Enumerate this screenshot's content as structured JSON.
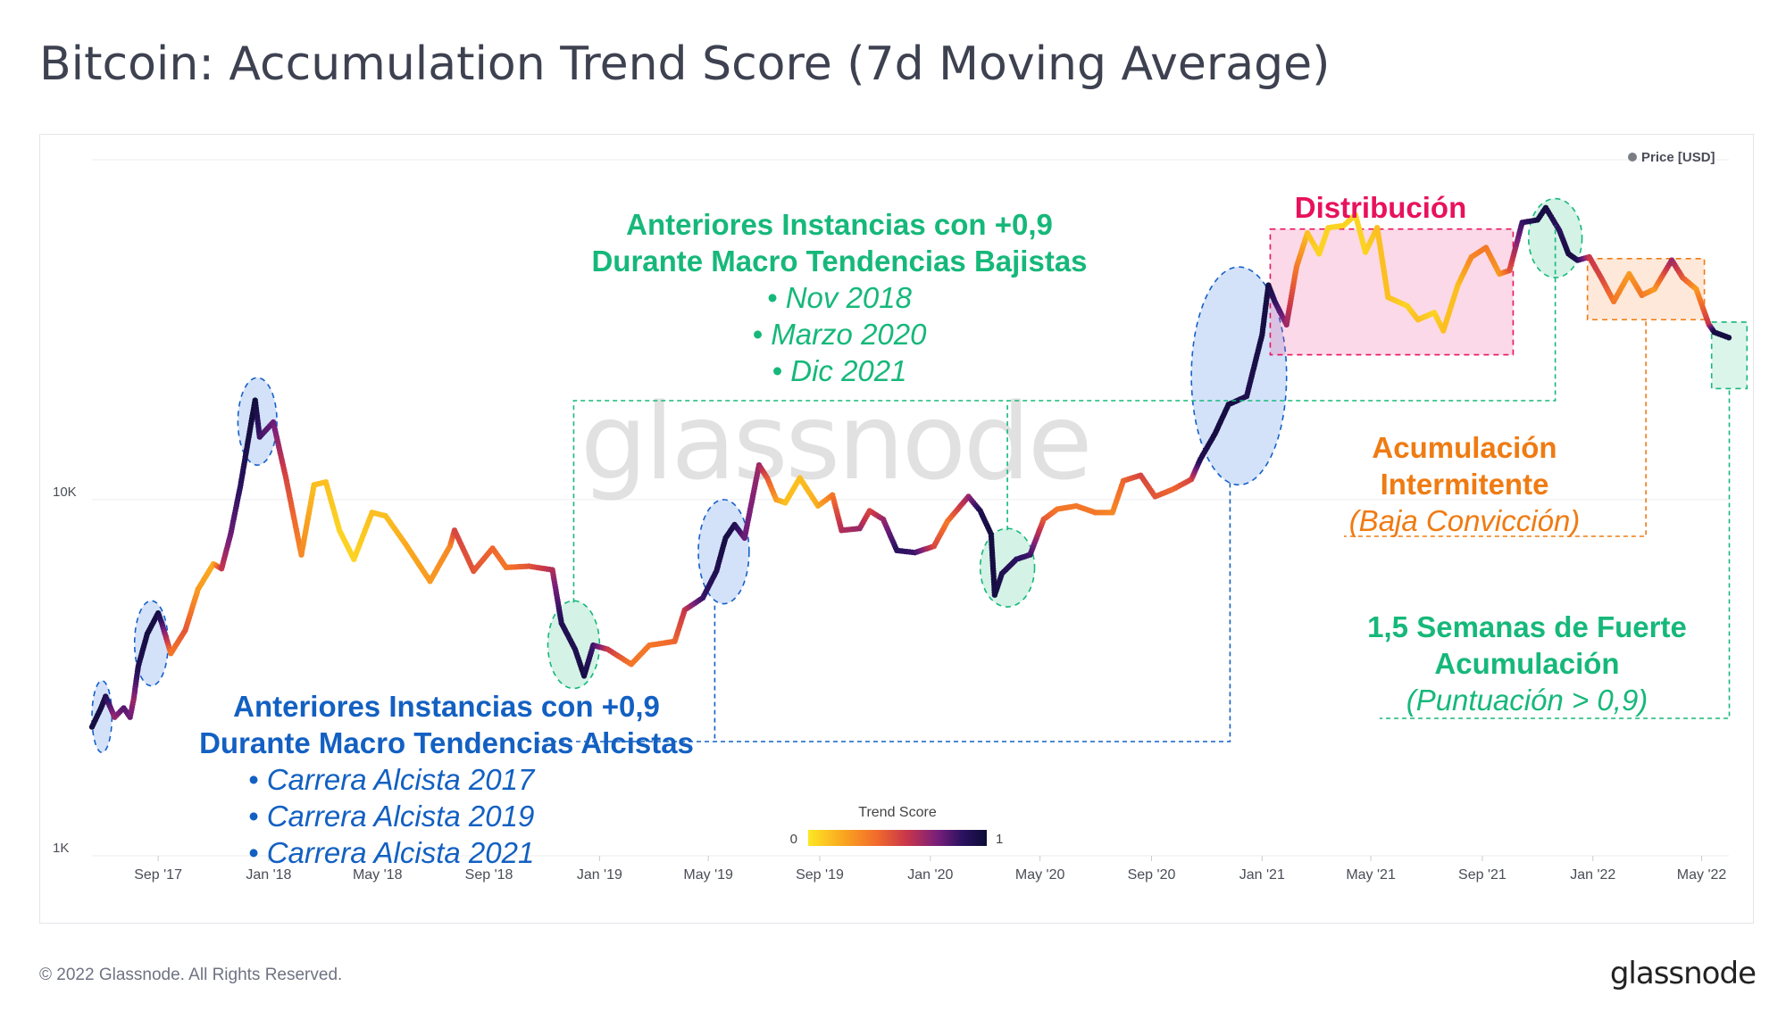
{
  "title": "Bitcoin: Accumulation Trend Score (7d Moving Average)",
  "footer": {
    "copyright": "© 2022 Glassnode. All Rights Reserved.",
    "logo": "glassnode"
  },
  "watermark": "glassnode",
  "colors": {
    "green": "#16b87a",
    "blue": "#1360c2",
    "pink": "#e8125c",
    "orange": "#ef7b12",
    "grid": "#eceef2",
    "text_axis": "#4a4d57"
  },
  "chart_data": {
    "type": "line",
    "title": "Bitcoin: Accumulation Trend Score (7d Moving Average)",
    "series_name": "Price [USD]",
    "color_by": "Trend Score",
    "y_scale": "log",
    "ylim": [
      1000,
      90000
    ],
    "x_start": "2017-06-20",
    "x_end": "2022-05-31",
    "y_ticks": [
      {
        "label": "1K",
        "value": 1000
      },
      {
        "label": "10K",
        "value": 10000
      }
    ],
    "x_ticks": [
      {
        "label": "Sep '17",
        "date": "2017-09-01"
      },
      {
        "label": "Jan '18",
        "date": "2018-01-01"
      },
      {
        "label": "May '18",
        "date": "2018-05-01"
      },
      {
        "label": "Sep '18",
        "date": "2018-09-01"
      },
      {
        "label": "Jan '19",
        "date": "2019-01-01"
      },
      {
        "label": "May '19",
        "date": "2019-05-01"
      },
      {
        "label": "Sep '19",
        "date": "2019-09-01"
      },
      {
        "label": "Jan '20",
        "date": "2020-01-01"
      },
      {
        "label": "May '20",
        "date": "2020-05-01"
      },
      {
        "label": "Sep '20",
        "date": "2020-09-01"
      },
      {
        "label": "Jan '21",
        "date": "2021-01-01"
      },
      {
        "label": "May '21",
        "date": "2021-05-01"
      },
      {
        "label": "Sep '21",
        "date": "2021-09-01"
      },
      {
        "label": "Jan '22",
        "date": "2022-01-01"
      },
      {
        "label": "May '22",
        "date": "2022-05-01"
      }
    ],
    "legend": {
      "label": "Price [USD]",
      "position": "top-right"
    },
    "colorbar": {
      "title": "Trend Score",
      "min_label": "0",
      "max_label": "1",
      "min": 0,
      "max": 1,
      "stops": [
        "#fde725",
        "#f9a51f",
        "#f26c2b",
        "#c9364a",
        "#7a1f7a",
        "#2d1262",
        "#0c0c35"
      ]
    },
    "points": [
      {
        "date": "2017-06-20",
        "price": 2300,
        "score": 0.95
      },
      {
        "date": "2017-06-30",
        "price": 2600,
        "score": 0.95
      },
      {
        "date": "2017-07-05",
        "price": 2800,
        "score": 0.9
      },
      {
        "date": "2017-07-15",
        "price": 2450,
        "score": 0.6
      },
      {
        "date": "2017-07-25",
        "price": 2600,
        "score": 0.75
      },
      {
        "date": "2017-08-01",
        "price": 2450,
        "score": 0.7
      },
      {
        "date": "2017-08-05",
        "price": 2750,
        "score": 0.6
      },
      {
        "date": "2017-08-10",
        "price": 3400,
        "score": 0.9
      },
      {
        "date": "2017-08-20",
        "price": 4200,
        "score": 0.95
      },
      {
        "date": "2017-09-01",
        "price": 4800,
        "score": 0.95
      },
      {
        "date": "2017-09-05",
        "price": 4500,
        "score": 0.8
      },
      {
        "date": "2017-09-15",
        "price": 3700,
        "score": 0.3
      },
      {
        "date": "2017-10-01",
        "price": 4300,
        "score": 0.4
      },
      {
        "date": "2017-10-15",
        "price": 5600,
        "score": 0.2
      },
      {
        "date": "2017-11-01",
        "price": 6600,
        "score": 0.15
      },
      {
        "date": "2017-11-10",
        "price": 6400,
        "score": 0.5
      },
      {
        "date": "2017-11-20",
        "price": 8000,
        "score": 0.7
      },
      {
        "date": "2017-12-01",
        "price": 11000,
        "score": 0.85
      },
      {
        "date": "2017-12-10",
        "price": 15000,
        "score": 0.95
      },
      {
        "date": "2017-12-17",
        "price": 19000,
        "score": 0.98
      },
      {
        "date": "2017-12-22",
        "price": 15000,
        "score": 0.8
      },
      {
        "date": "2018-01-06",
        "price": 16500,
        "score": 0.7
      },
      {
        "date": "2018-01-20",
        "price": 11500,
        "score": 0.45
      },
      {
        "date": "2018-02-06",
        "price": 7000,
        "score": 0.25
      },
      {
        "date": "2018-02-20",
        "price": 11000,
        "score": 0.1
      },
      {
        "date": "2018-03-05",
        "price": 11200,
        "score": 0.1
      },
      {
        "date": "2018-03-20",
        "price": 8200,
        "score": 0.05
      },
      {
        "date": "2018-04-05",
        "price": 6800,
        "score": 0.05
      },
      {
        "date": "2018-04-25",
        "price": 9200,
        "score": 0.1
      },
      {
        "date": "2018-05-10",
        "price": 9000,
        "score": 0.1
      },
      {
        "date": "2018-06-01",
        "price": 7500,
        "score": 0.15
      },
      {
        "date": "2018-06-28",
        "price": 5900,
        "score": 0.2
      },
      {
        "date": "2018-07-20",
        "price": 7400,
        "score": 0.25
      },
      {
        "date": "2018-07-25",
        "price": 8200,
        "score": 0.45
      },
      {
        "date": "2018-08-15",
        "price": 6300,
        "score": 0.4
      },
      {
        "date": "2018-09-05",
        "price": 7300,
        "score": 0.35
      },
      {
        "date": "2018-09-20",
        "price": 6450,
        "score": 0.3
      },
      {
        "date": "2018-10-15",
        "price": 6500,
        "score": 0.4
      },
      {
        "date": "2018-11-10",
        "price": 6350,
        "score": 0.55
      },
      {
        "date": "2018-11-20",
        "price": 4500,
        "score": 0.9
      },
      {
        "date": "2018-12-05",
        "price": 3800,
        "score": 0.9
      },
      {
        "date": "2018-12-15",
        "price": 3200,
        "score": 0.95
      },
      {
        "date": "2018-12-25",
        "price": 3900,
        "score": 0.8
      },
      {
        "date": "2019-01-10",
        "price": 3800,
        "score": 0.5
      },
      {
        "date": "2019-02-05",
        "price": 3450,
        "score": 0.3
      },
      {
        "date": "2019-02-25",
        "price": 3900,
        "score": 0.3
      },
      {
        "date": "2019-03-25",
        "price": 4000,
        "score": 0.35
      },
      {
        "date": "2019-04-05",
        "price": 4900,
        "score": 0.5
      },
      {
        "date": "2019-04-25",
        "price": 5300,
        "score": 0.8
      },
      {
        "date": "2019-05-10",
        "price": 6300,
        "score": 0.9
      },
      {
        "date": "2019-05-20",
        "price": 7800,
        "score": 0.95
      },
      {
        "date": "2019-05-30",
        "price": 8500,
        "score": 0.9
      },
      {
        "date": "2019-06-10",
        "price": 7800,
        "score": 0.7
      },
      {
        "date": "2019-06-26",
        "price": 12500,
        "score": 0.6
      },
      {
        "date": "2019-07-05",
        "price": 11500,
        "score": 0.4
      },
      {
        "date": "2019-07-15",
        "price": 10000,
        "score": 0.2
      },
      {
        "date": "2019-07-25",
        "price": 9800,
        "score": 0.1
      },
      {
        "date": "2019-08-10",
        "price": 11500,
        "score": 0.1
      },
      {
        "date": "2019-08-30",
        "price": 9600,
        "score": 0.15
      },
      {
        "date": "2019-09-15",
        "price": 10300,
        "score": 0.3
      },
      {
        "date": "2019-09-25",
        "price": 8200,
        "score": 0.55
      },
      {
        "date": "2019-10-15",
        "price": 8300,
        "score": 0.6
      },
      {
        "date": "2019-10-26",
        "price": 9300,
        "score": 0.45
      },
      {
        "date": "2019-11-10",
        "price": 8800,
        "score": 0.6
      },
      {
        "date": "2019-11-25",
        "price": 7200,
        "score": 0.85
      },
      {
        "date": "2019-12-15",
        "price": 7100,
        "score": 0.8
      },
      {
        "date": "2020-01-05",
        "price": 7400,
        "score": 0.45
      },
      {
        "date": "2020-01-20",
        "price": 8700,
        "score": 0.3
      },
      {
        "date": "2020-02-12",
        "price": 10200,
        "score": 0.6
      },
      {
        "date": "2020-02-25",
        "price": 9300,
        "score": 0.9
      },
      {
        "date": "2020-03-08",
        "price": 8000,
        "score": 0.95
      },
      {
        "date": "2020-03-12",
        "price": 5400,
        "score": 0.95
      },
      {
        "date": "2020-03-20",
        "price": 6200,
        "score": 0.9
      },
      {
        "date": "2020-04-05",
        "price": 6800,
        "score": 0.85
      },
      {
        "date": "2020-04-20",
        "price": 7000,
        "score": 0.8
      },
      {
        "date": "2020-05-05",
        "price": 8800,
        "score": 0.4
      },
      {
        "date": "2020-05-20",
        "price": 9400,
        "score": 0.3
      },
      {
        "date": "2020-06-10",
        "price": 9600,
        "score": 0.3
      },
      {
        "date": "2020-07-01",
        "price": 9200,
        "score": 0.3
      },
      {
        "date": "2020-07-20",
        "price": 9200,
        "score": 0.25
      },
      {
        "date": "2020-08-01",
        "price": 11300,
        "score": 0.35
      },
      {
        "date": "2020-08-20",
        "price": 11700,
        "score": 0.45
      },
      {
        "date": "2020-09-05",
        "price": 10200,
        "score": 0.4
      },
      {
        "date": "2020-09-25",
        "price": 10700,
        "score": 0.35
      },
      {
        "date": "2020-10-15",
        "price": 11400,
        "score": 0.45
      },
      {
        "date": "2020-10-25",
        "price": 13000,
        "score": 0.9
      },
      {
        "date": "2020-11-10",
        "price": 15300,
        "score": 0.95
      },
      {
        "date": "2020-11-25",
        "price": 18500,
        "score": 0.95
      },
      {
        "date": "2020-12-15",
        "price": 19500,
        "score": 0.9
      },
      {
        "date": "2021-01-01",
        "price": 29000,
        "score": 0.95
      },
      {
        "date": "2021-01-08",
        "price": 40000,
        "score": 0.95
      },
      {
        "date": "2021-01-15",
        "price": 36000,
        "score": 0.85
      },
      {
        "date": "2021-01-28",
        "price": 31000,
        "score": 0.6
      },
      {
        "date": "2021-02-08",
        "price": 45000,
        "score": 0.3
      },
      {
        "date": "2021-02-20",
        "price": 56000,
        "score": 0.1
      },
      {
        "date": "2021-03-05",
        "price": 49000,
        "score": 0.05
      },
      {
        "date": "2021-03-15",
        "price": 58000,
        "score": 0.05
      },
      {
        "date": "2021-04-01",
        "price": 58800,
        "score": 0.05
      },
      {
        "date": "2021-04-14",
        "price": 63000,
        "score": 0.05
      },
      {
        "date": "2021-04-25",
        "price": 49500,
        "score": 0.05
      },
      {
        "date": "2021-05-08",
        "price": 58000,
        "score": 0.1
      },
      {
        "date": "2021-05-20",
        "price": 37000,
        "score": 0.1
      },
      {
        "date": "2021-06-10",
        "price": 35000,
        "score": 0.05
      },
      {
        "date": "2021-06-22",
        "price": 32000,
        "score": 0.1
      },
      {
        "date": "2021-07-10",
        "price": 33500,
        "score": 0.05
      },
      {
        "date": "2021-07-20",
        "price": 29800,
        "score": 0.1
      },
      {
        "date": "2021-08-05",
        "price": 40000,
        "score": 0.1
      },
      {
        "date": "2021-08-20",
        "price": 48000,
        "score": 0.25
      },
      {
        "date": "2021-09-05",
        "price": 51000,
        "score": 0.3
      },
      {
        "date": "2021-09-20",
        "price": 43000,
        "score": 0.2
      },
      {
        "date": "2021-10-01",
        "price": 44000,
        "score": 0.4
      },
      {
        "date": "2021-10-15",
        "price": 60000,
        "score": 0.8
      },
      {
        "date": "2021-11-01",
        "price": 61000,
        "score": 0.95
      },
      {
        "date": "2021-11-10",
        "price": 66000,
        "score": 0.95
      },
      {
        "date": "2021-11-25",
        "price": 57000,
        "score": 0.85
      },
      {
        "date": "2021-12-05",
        "price": 49000,
        "score": 0.95
      },
      {
        "date": "2021-12-15",
        "price": 47000,
        "score": 0.9
      },
      {
        "date": "2021-12-28",
        "price": 48000,
        "score": 0.5
      },
      {
        "date": "2022-01-10",
        "price": 42000,
        "score": 0.45
      },
      {
        "date": "2022-01-24",
        "price": 36000,
        "score": 0.3
      },
      {
        "date": "2022-02-10",
        "price": 43000,
        "score": 0.2
      },
      {
        "date": "2022-02-24",
        "price": 37500,
        "score": 0.3
      },
      {
        "date": "2022-03-10",
        "price": 39000,
        "score": 0.2
      },
      {
        "date": "2022-03-29",
        "price": 47000,
        "score": 0.6
      },
      {
        "date": "2022-04-10",
        "price": 42000,
        "score": 0.4
      },
      {
        "date": "2022-04-25",
        "price": 39000,
        "score": 0.2
      },
      {
        "date": "2022-05-09",
        "price": 31000,
        "score": 0.5
      },
      {
        "date": "2022-05-15",
        "price": 29500,
        "score": 0.95
      },
      {
        "date": "2022-05-31",
        "price": 28500,
        "score": 0.95
      }
    ],
    "highlight_regions": [
      {
        "kind": "blue",
        "start": "2017-06-20",
        "end": "2017-07-12",
        "ymin": 1950,
        "ymax": 3100
      },
      {
        "kind": "blue",
        "start": "2017-08-06",
        "end": "2017-09-12",
        "ymin": 3000,
        "ymax": 5200
      },
      {
        "kind": "blue",
        "start": "2017-11-28",
        "end": "2018-01-10",
        "ymin": 12500,
        "ymax": 22000
      },
      {
        "kind": "blue",
        "start": "2019-04-20",
        "end": "2019-06-15",
        "ymin": 5100,
        "ymax": 10000
      },
      {
        "kind": "blue",
        "start": "2020-10-15",
        "end": "2021-01-28",
        "ymin": 11000,
        "ymax": 45000
      },
      {
        "kind": "green",
        "start": "2018-11-05",
        "end": "2019-01-01",
        "ymin": 2950,
        "ymax": 5200
      },
      {
        "kind": "green",
        "start": "2020-02-25",
        "end": "2020-04-25",
        "ymin": 5000,
        "ymax": 8300
      },
      {
        "kind": "green",
        "start": "2021-10-22",
        "end": "2021-12-20",
        "ymin": 42000,
        "ymax": 70000
      },
      {
        "kind": "pink",
        "start": "2021-01-10",
        "end": "2021-10-05",
        "ymin": 25500,
        "ymax": 57500
      },
      {
        "kind": "orange",
        "start": "2021-12-26",
        "end": "2022-05-04",
        "ymin": 32000,
        "ymax": 47500
      },
      {
        "kind": "strongacc",
        "start": "2022-05-12",
        "end": "2022-06-20",
        "ymin": 20500,
        "ymax": 31500
      }
    ]
  },
  "annotations": {
    "bear": {
      "line1": "Anteriores Instancias con +0,9",
      "line2": "Durante Macro Tendencias Bajistas",
      "items": [
        "•  Nov 2018",
        "•  Marzo 2020",
        "•  Dic 2021"
      ]
    },
    "bull": {
      "line1": "Anteriores Instancias con +0,9",
      "line2": "Durante Macro Tendencias Alcistas",
      "items": [
        "•  Carrera Alcista 2017",
        "•  Carrera Alcista 2019",
        "•  Carrera Alcista 2021"
      ]
    },
    "distribution": "Distribución",
    "intermittent": {
      "line1": "Acumulación",
      "line2": "Intermitente",
      "sub": "(Baja Convicción)"
    },
    "strong": {
      "line1": "1,5 Semanas de Fuerte",
      "line2": "Acumulación",
      "sub": "(Puntuación > 0,9)"
    }
  }
}
